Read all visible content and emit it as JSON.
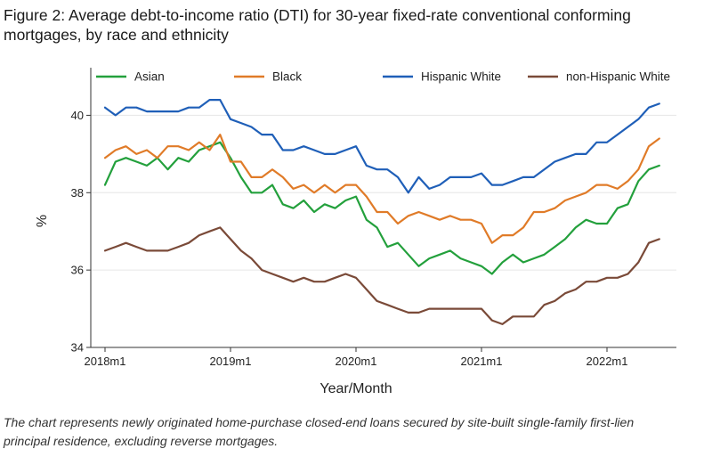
{
  "figure": {
    "title": "Figure 2: Average debt-to-income ratio (DTI) for 30-year fixed-rate conventional conforming mortgages, by race and ethnicity",
    "caption": "The chart represents newly originated home-purchase closed-end loans secured by site-built single-family first-lien principal residence, excluding reverse mortgages."
  },
  "chart_data": {
    "type": "line",
    "title": "",
    "xlabel": "Year/Month",
    "ylabel": "%",
    "xlim": [
      "2018m1",
      "2022m6"
    ],
    "ylim": [
      34,
      41
    ],
    "x_ticks": [
      "2018m1",
      "2019m1",
      "2020m1",
      "2021m1",
      "2022m1"
    ],
    "y_ticks": [
      34,
      36,
      38,
      40
    ],
    "grid": "horizontal",
    "legend_position": "top",
    "x": [
      "2018m1",
      "2018m2",
      "2018m3",
      "2018m4",
      "2018m5",
      "2018m6",
      "2018m7",
      "2018m8",
      "2018m9",
      "2018m10",
      "2018m11",
      "2018m12",
      "2019m1",
      "2019m2",
      "2019m3",
      "2019m4",
      "2019m5",
      "2019m6",
      "2019m7",
      "2019m8",
      "2019m9",
      "2019m10",
      "2019m11",
      "2019m12",
      "2020m1",
      "2020m2",
      "2020m3",
      "2020m4",
      "2020m5",
      "2020m6",
      "2020m7",
      "2020m8",
      "2020m9",
      "2020m10",
      "2020m11",
      "2020m12",
      "2021m1",
      "2021m2",
      "2021m3",
      "2021m4",
      "2021m5",
      "2021m6",
      "2021m7",
      "2021m8",
      "2021m9",
      "2021m10",
      "2021m11",
      "2021m12",
      "2022m1",
      "2022m2",
      "2022m3",
      "2022m4",
      "2022m5",
      "2022m6"
    ],
    "series": [
      {
        "name": "Asian",
        "color": "#23a03c",
        "values": [
          38.2,
          38.8,
          38.9,
          38.8,
          38.7,
          38.9,
          38.6,
          38.9,
          38.8,
          39.1,
          39.2,
          39.3,
          38.9,
          38.4,
          38.0,
          38.0,
          38.2,
          37.7,
          37.6,
          37.8,
          37.5,
          37.7,
          37.6,
          37.8,
          37.9,
          37.3,
          37.1,
          36.6,
          36.7,
          36.4,
          36.1,
          36.3,
          36.4,
          36.5,
          36.3,
          36.2,
          36.1,
          35.9,
          36.2,
          36.4,
          36.2,
          36.3,
          36.4,
          36.6,
          36.8,
          37.1,
          37.3,
          37.2,
          37.2,
          37.6,
          37.7,
          38.3,
          38.6,
          38.7
        ]
      },
      {
        "name": "Black",
        "color": "#e07b28",
        "values": [
          38.9,
          39.1,
          39.2,
          39.0,
          39.1,
          38.9,
          39.2,
          39.2,
          39.1,
          39.3,
          39.1,
          39.5,
          38.8,
          38.8,
          38.4,
          38.4,
          38.6,
          38.4,
          38.1,
          38.2,
          38.0,
          38.2,
          38.0,
          38.2,
          38.2,
          37.9,
          37.5,
          37.5,
          37.2,
          37.4,
          37.5,
          37.4,
          37.3,
          37.4,
          37.3,
          37.3,
          37.2,
          36.7,
          36.9,
          36.9,
          37.1,
          37.5,
          37.5,
          37.6,
          37.8,
          37.9,
          38.0,
          38.2,
          38.2,
          38.1,
          38.3,
          38.6,
          39.2,
          39.4
        ]
      },
      {
        "name": "Hispanic White",
        "color": "#1f5fb8",
        "values": [
          40.2,
          40.0,
          40.2,
          40.2,
          40.1,
          40.1,
          40.1,
          40.1,
          40.2,
          40.2,
          40.4,
          40.4,
          39.9,
          39.8,
          39.7,
          39.5,
          39.5,
          39.1,
          39.1,
          39.2,
          39.1,
          39.0,
          39.0,
          39.1,
          39.2,
          38.7,
          38.6,
          38.6,
          38.4,
          38.0,
          38.4,
          38.1,
          38.2,
          38.4,
          38.4,
          38.4,
          38.5,
          38.2,
          38.2,
          38.3,
          38.4,
          38.4,
          38.6,
          38.8,
          38.9,
          39.0,
          39.0,
          39.3,
          39.3,
          39.5,
          39.7,
          39.9,
          40.2,
          40.3
        ]
      },
      {
        "name": "non-Hispanic White",
        "color": "#7a4a38",
        "values": [
          36.5,
          36.6,
          36.7,
          36.6,
          36.5,
          36.5,
          36.5,
          36.6,
          36.7,
          36.9,
          37.0,
          37.1,
          36.8,
          36.5,
          36.3,
          36.0,
          35.9,
          35.8,
          35.7,
          35.8,
          35.7,
          35.7,
          35.8,
          35.9,
          35.8,
          35.5,
          35.2,
          35.1,
          35.0,
          34.9,
          34.9,
          35.0,
          35.0,
          35.0,
          35.0,
          35.0,
          35.0,
          34.7,
          34.6,
          34.8,
          34.8,
          34.8,
          35.1,
          35.2,
          35.4,
          35.5,
          35.7,
          35.7,
          35.8,
          35.8,
          35.9,
          36.2,
          36.7,
          36.8
        ]
      }
    ]
  }
}
